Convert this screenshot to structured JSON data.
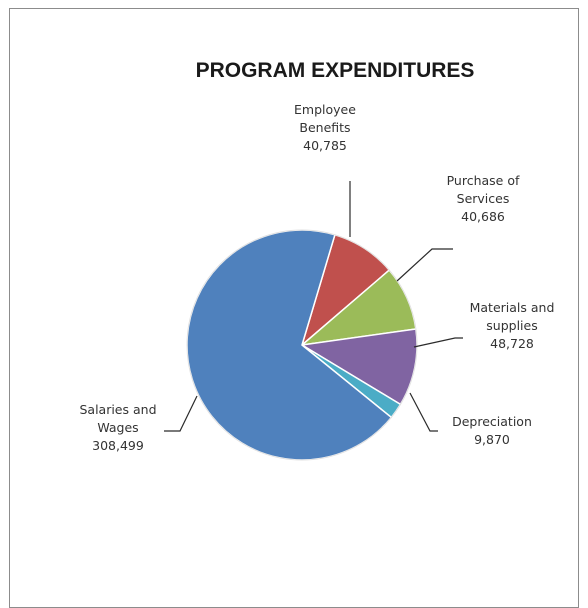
{
  "chart_data": {
    "type": "pie",
    "title": "PROGRAM EXPENDITURES",
    "slices": [
      {
        "label": [
          "Employee",
          "Benefits"
        ],
        "value": 40785,
        "value_text": "40,785",
        "color": "#c0504d"
      },
      {
        "label": [
          "Purchase of",
          "Services"
        ],
        "value": 40686,
        "value_text": "40,686",
        "color": "#9bbb59"
      },
      {
        "label": [
          "Materials and",
          "supplies"
        ],
        "value": 48728,
        "value_text": "48,728",
        "color": "#8064a2"
      },
      {
        "label": [
          "Depreciation"
        ],
        "value": 9870,
        "value_text": "9,870",
        "color": "#4bacc6"
      },
      {
        "label": [
          "Salaries and",
          "Wages"
        ],
        "value": 308499,
        "value_text": "308,499",
        "color": "#4f81bd"
      }
    ]
  }
}
